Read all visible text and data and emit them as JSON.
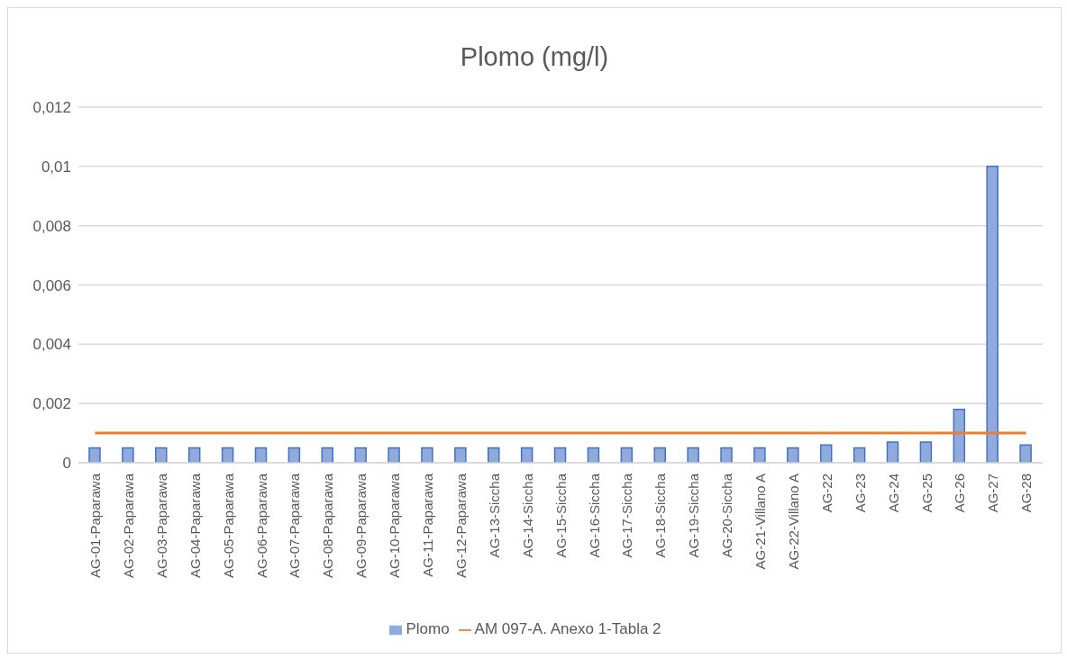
{
  "chart_data": {
    "type": "bar",
    "title": "Plomo (mg/l)",
    "categories": [
      "AG-01-Paparawa",
      "AG-02-Paparawa",
      "AG-03-Paparawa",
      "AG-04-Paparawa",
      "AG-05-Paparawa",
      "AG-06-Paparawa",
      "AG-07-Paparawa",
      "AG-08-Paparawa",
      "AG-09-Paparawa",
      "AG-10-Paparawa",
      "AG-11-Paparawa",
      "AG-12-Paparawa",
      "AG-13-Siccha",
      "AG-14-Siccha",
      "AG-15-Siccha",
      "AG-16-Siccha",
      "AG-17-Siccha",
      "AG-18-Siccha",
      "AG-19-Siccha",
      "AG-20-Siccha",
      "AG-21-Villano A",
      "AG-22-Villano A",
      "AG-22",
      "AG-23",
      "AG-24",
      "AG-25",
      "AG-26",
      "AG-27",
      "AG-28"
    ],
    "series": [
      {
        "name": "Plomo",
        "color": "#8faadc",
        "values": [
          0.0005,
          0.0005,
          0.0005,
          0.0005,
          0.0005,
          0.0005,
          0.0005,
          0.0005,
          0.0005,
          0.0005,
          0.0005,
          0.0005,
          0.0005,
          0.0005,
          0.0005,
          0.0005,
          0.0005,
          0.0005,
          0.0005,
          0.0005,
          0.0005,
          0.0005,
          0.0006,
          0.0005,
          0.0007,
          0.0007,
          0.0018,
          0.01,
          0.0006
        ]
      },
      {
        "name": "AM 097-A. Anexo 1-Tabla 2",
        "type": "line",
        "color": "#ed7d31",
        "values": [
          0.001,
          0.001,
          0.001,
          0.001,
          0.001,
          0.001,
          0.001,
          0.001,
          0.001,
          0.001,
          0.001,
          0.001,
          0.001,
          0.001,
          0.001,
          0.001,
          0.001,
          0.001,
          0.001,
          0.001,
          0.001,
          0.001,
          0.001,
          0.001,
          0.001,
          0.001,
          0.001,
          0.001,
          0.001
        ]
      }
    ],
    "ylim": [
      0,
      0.012
    ],
    "yticks": [
      {
        "value": 0,
        "label": "0"
      },
      {
        "value": 0.002,
        "label": "0,002"
      },
      {
        "value": 0.004,
        "label": "0,004"
      },
      {
        "value": 0.006,
        "label": "0,006"
      },
      {
        "value": 0.008,
        "label": "0,008"
      },
      {
        "value": 0.01,
        "label": "0,01"
      },
      {
        "value": 0.012,
        "label": "0,012"
      }
    ],
    "grid": "y",
    "legend": "bottom",
    "marker": "none"
  }
}
